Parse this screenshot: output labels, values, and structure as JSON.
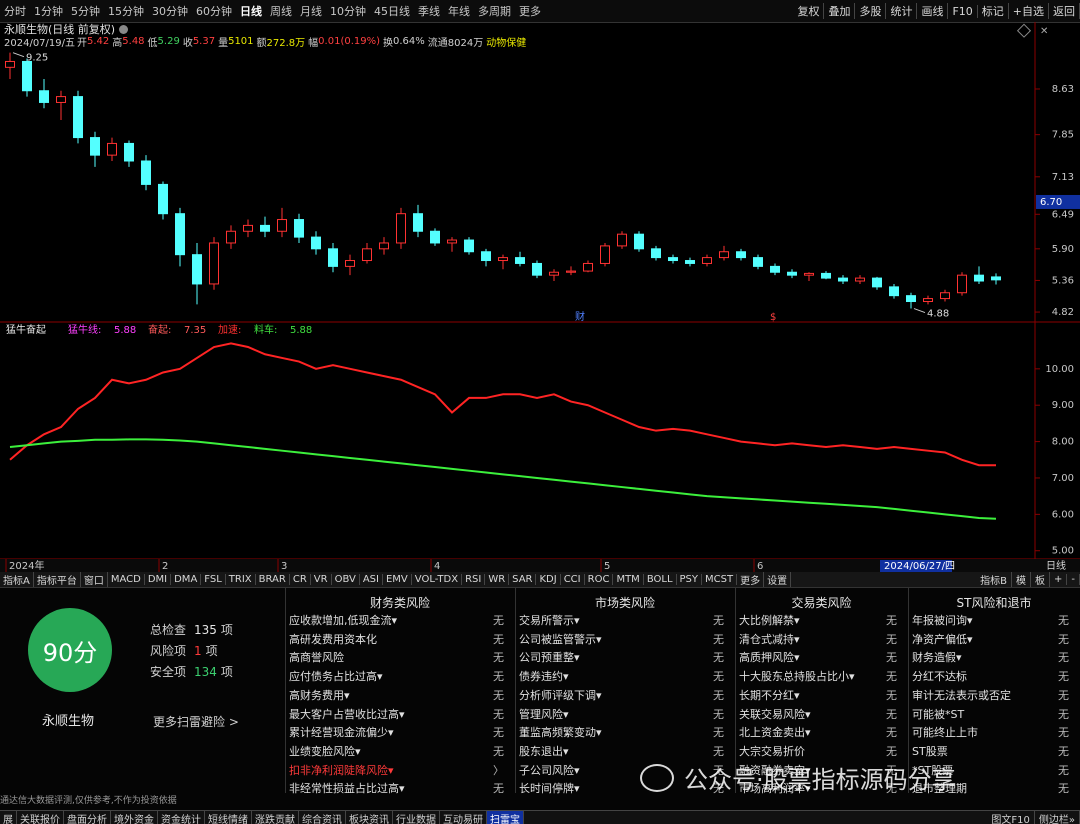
{
  "toolbar": {
    "periods": [
      {
        "label": "分时"
      },
      {
        "label": "1分钟"
      },
      {
        "label": "5分钟"
      },
      {
        "label": "15分钟"
      },
      {
        "label": "30分钟"
      },
      {
        "label": "60分钟"
      },
      {
        "label": "日线",
        "active": true
      },
      {
        "label": "周线"
      },
      {
        "label": "月线"
      },
      {
        "label": "10分钟"
      },
      {
        "label": "45日线"
      },
      {
        "label": "季线"
      },
      {
        "label": "年线"
      },
      {
        "label": "多周期"
      },
      {
        "label": "更多"
      }
    ],
    "tools": [
      "复权",
      "叠加",
      "多股",
      "统计",
      "画线",
      "F10",
      "标记",
      "+自选",
      "返回"
    ]
  },
  "stock": {
    "title": "永顺生物(日线 前复权)",
    "date": "2024/07/19/五",
    "quote": [
      {
        "label": "开",
        "value": 5.42,
        "color": "#ff4040"
      },
      {
        "label": "高",
        "value": 5.48,
        "color": "#ff4040"
      },
      {
        "label": "低",
        "value": 5.29,
        "color": "#40d060"
      },
      {
        "label": "收",
        "value": 5.37,
        "color": "#ff4040"
      },
      {
        "label": "量",
        "value": 5101,
        "color": "#e8e800"
      },
      {
        "label": "额",
        "value": "272.8万",
        "color": "#e8e800"
      },
      {
        "label": "幅",
        "value": "0.01(0.19%)",
        "color": "#ff4040"
      },
      {
        "label": "换",
        "value": "0.64%",
        "color": "#d0d0d0"
      },
      {
        "label": "流通",
        "value": "8024万",
        "color": "#d0d0d0"
      }
    ],
    "industry": "动物保健"
  },
  "chart_data": [
    {
      "type": "candlestick",
      "ylim": [
        4.65,
        9.33
      ],
      "yticks": [
        8.63,
        7.85,
        7.13,
        6.49,
        {
          "value": 5.9,
          "label": "5.90"
        },
        5.36,
        4.82
      ],
      "cursor_price": {
        "value": 6.7,
        "label": "6.70"
      },
      "up_color": "#ff3232",
      "down_color": "#54ffff",
      "event_markers": [
        "财",
        "$"
      ],
      "open": [
        9.0,
        9.1,
        8.6,
        8.4,
        8.5,
        7.8,
        7.5,
        7.7,
        7.4,
        7.0,
        6.5,
        5.8,
        5.3,
        6.0,
        6.2,
        6.3,
        6.2,
        6.4,
        6.1,
        5.9,
        5.6,
        5.7,
        5.9,
        6.0,
        6.5,
        6.2,
        6.0,
        6.05,
        5.85,
        5.7,
        5.75,
        5.65,
        5.45,
        5.5,
        5.52,
        5.65,
        5.95,
        6.15,
        5.9,
        5.75,
        5.7,
        5.65,
        5.75,
        5.85,
        5.75,
        5.6,
        5.5,
        5.45,
        5.48,
        5.4,
        5.35,
        5.4,
        5.25,
        5.1,
        5.0,
        5.05,
        5.15,
        5.45,
        5.42
      ],
      "high": [
        9.25,
        9.15,
        8.8,
        8.6,
        8.6,
        7.9,
        7.8,
        7.75,
        7.5,
        7.05,
        6.6,
        6.0,
        6.1,
        6.3,
        6.4,
        6.45,
        6.6,
        6.5,
        6.2,
        6.0,
        5.8,
        6.0,
        6.1,
        6.6,
        6.65,
        6.25,
        6.1,
        6.1,
        5.9,
        5.8,
        5.85,
        5.7,
        5.55,
        5.6,
        5.7,
        6.0,
        6.2,
        6.2,
        5.95,
        5.8,
        5.75,
        5.8,
        5.95,
        5.9,
        5.8,
        5.65,
        5.55,
        5.5,
        5.52,
        5.45,
        5.45,
        5.42,
        5.3,
        5.15,
        5.1,
        5.2,
        5.5,
        5.6,
        5.48
      ],
      "low": [
        8.8,
        8.5,
        8.3,
        8.1,
        7.7,
        7.3,
        7.4,
        7.3,
        6.9,
        6.4,
        5.6,
        4.95,
        5.2,
        5.9,
        6.1,
        6.1,
        6.1,
        6.0,
        5.8,
        5.5,
        5.45,
        5.65,
        5.8,
        5.9,
        6.1,
        5.95,
        5.85,
        5.8,
        5.6,
        5.55,
        5.6,
        5.4,
        5.35,
        5.45,
        5.5,
        5.6,
        5.9,
        5.85,
        5.7,
        5.65,
        5.6,
        5.6,
        5.7,
        5.7,
        5.55,
        5.45,
        5.4,
        5.35,
        5.38,
        5.3,
        5.3,
        5.2,
        5.05,
        4.88,
        4.95,
        5.0,
        5.1,
        5.3,
        5.29
      ],
      "close": [
        9.1,
        8.6,
        8.4,
        8.5,
        7.8,
        7.5,
        7.7,
        7.4,
        7.0,
        6.5,
        5.8,
        5.3,
        6.0,
        6.2,
        6.3,
        6.2,
        6.4,
        6.1,
        5.9,
        5.6,
        5.7,
        5.9,
        6.0,
        6.5,
        6.2,
        6.0,
        6.05,
        5.85,
        5.7,
        5.75,
        5.65,
        5.45,
        5.5,
        5.52,
        5.65,
        5.95,
        6.15,
        5.9,
        5.75,
        5.7,
        5.65,
        5.75,
        5.85,
        5.75,
        5.6,
        5.5,
        5.45,
        5.48,
        5.4,
        5.35,
        5.4,
        5.25,
        5.1,
        5.0,
        5.05,
        5.15,
        5.45,
        5.35,
        5.37
      ]
    },
    {
      "type": "line",
      "title": "猛牛奋起",
      "legend": [
        {
          "label": "猛牛线:",
          "value": 5.88,
          "color": "#ff40ff"
        },
        {
          "label": "奋起:",
          "value": 7.35,
          "color": "#ff5a5a"
        },
        {
          "label": "加速:",
          "color": "#ff3030"
        },
        {
          "label": "料车:",
          "value": 5.88,
          "color": "#40e040"
        }
      ],
      "categories": [
        "2024年",
        null,
        null,
        null,
        null,
        null,
        null,
        null,
        null,
        "2",
        null,
        null,
        null,
        null,
        null,
        null,
        "3",
        null,
        null,
        null,
        null,
        null,
        null,
        null,
        null,
        "4",
        null,
        null,
        null,
        null,
        null,
        null,
        null,
        null,
        null,
        "5",
        null,
        null,
        null,
        null,
        null,
        null,
        null,
        null,
        "6",
        null,
        null,
        null,
        null,
        null,
        null,
        null,
        null,
        null,
        null,
        null,
        null,
        null,
        null
      ],
      "cursor_date": "2024/06/27/四",
      "x_axis_label": "日线",
      "ylim": [
        4.8,
        10.93
      ],
      "yticks": [
        {
          "value": 10,
          "label": "10.00"
        },
        {
          "value": 9,
          "label": "9.00"
        },
        {
          "value": 8,
          "label": "8.00"
        },
        {
          "value": 7,
          "label": "7.00"
        },
        {
          "value": 6,
          "label": "6.00"
        },
        {
          "value": 5,
          "label": "5.00"
        }
      ],
      "series": [
        {
          "name": "奋起",
          "color": "#ff2424",
          "values": [
            7.5,
            7.9,
            8.2,
            8.4,
            8.9,
            9.2,
            9.7,
            9.6,
            9.7,
            9.9,
            10.0,
            10.3,
            10.6,
            10.7,
            10.6,
            10.4,
            10.3,
            10.2,
            10.0,
            10.1,
            10.0,
            9.9,
            9.8,
            9.7,
            9.5,
            9.3,
            8.8,
            9.2,
            9.2,
            9.3,
            9.3,
            9.2,
            9.3,
            9.1,
            9.0,
            8.8,
            8.6,
            8.4,
            8.3,
            8.35,
            8.3,
            8.2,
            8.1,
            8.0,
            7.95,
            7.9,
            7.95,
            7.9,
            7.85,
            7.9,
            7.85,
            7.8,
            7.85,
            7.8,
            7.75,
            7.7,
            7.5,
            7.35,
            7.35
          ]
        },
        {
          "name": "猛牛线",
          "color": "#3cf03c",
          "values": [
            7.85,
            7.9,
            7.95,
            8.0,
            8.02,
            8.05,
            8.05,
            8.06,
            8.06,
            8.05,
            8.03,
            8.0,
            7.95,
            7.9,
            7.85,
            7.8,
            7.75,
            7.7,
            7.65,
            7.6,
            7.55,
            7.5,
            7.45,
            7.4,
            7.35,
            7.3,
            7.25,
            7.2,
            7.15,
            7.1,
            7.05,
            7.0,
            6.95,
            6.9,
            6.85,
            6.8,
            6.75,
            6.7,
            6.65,
            6.6,
            6.55,
            6.5,
            6.47,
            6.44,
            6.41,
            6.38,
            6.35,
            6.32,
            6.29,
            6.26,
            6.23,
            6.2,
            6.15,
            6.1,
            6.05,
            6.0,
            5.95,
            5.9,
            5.88
          ]
        }
      ]
    }
  ],
  "indicator_tabs": {
    "left": [
      "指标A",
      "指标平台",
      "窗口",
      "MACD",
      "DMI",
      "DMA",
      "FSL",
      "TRIX",
      "BRAR",
      "CR",
      "VR",
      "OBV",
      "ASI",
      "EMV",
      "VOL-TDX",
      "RSI",
      "WR",
      "SAR",
      "KDJ",
      "CCI",
      "ROC",
      "MTM",
      "BOLL",
      "PSY",
      "MCST",
      "更多",
      "设置"
    ],
    "right": [
      "指标B",
      "模",
      "板",
      "+",
      "-"
    ]
  },
  "risk_panel": {
    "score": "90分",
    "stock_name": "永顺生物",
    "stats": [
      {
        "label": "总检查",
        "value": 135,
        "unit": "项",
        "color": "#e6e6e6"
      },
      {
        "label": "风险项",
        "value": 1,
        "unit": "项",
        "color": "#ff3a3a"
      },
      {
        "label": "安全项",
        "value": 134,
        "unit": "项",
        "color": "#3cd070"
      }
    ],
    "more": "更多扫雷避险 >",
    "columns": [
      {
        "title": "财务类风险",
        "rows": [
          {
            "item": "应收款增加,低现金流▾",
            "status": "无"
          },
          {
            "item": "高研发费用资本化",
            "status": "无"
          },
          {
            "item": "高商誉风险",
            "status": "无"
          },
          {
            "item": "应付债务占比过高▾",
            "status": "无"
          },
          {
            "item": "高财务费用▾",
            "status": "无"
          },
          {
            "item": "最大客户占营收比过高▾",
            "status": "无"
          },
          {
            "item": "累计经营现金流偏少▾",
            "status": "无"
          },
          {
            "item": "业绩变脸风险▾",
            "status": "无"
          },
          {
            "item": "扣非净利润陡降风险▾",
            "status": "〉",
            "risk": true
          },
          {
            "item": "非经常性损益占比过高▾",
            "status": "无"
          }
        ]
      },
      {
        "title": "市场类风险",
        "rows": [
          {
            "item": "交易所警示▾",
            "status": "无"
          },
          {
            "item": "公司被监管警示▾",
            "status": "无"
          },
          {
            "item": "公司预重整▾",
            "status": "无"
          },
          {
            "item": "债券违约▾",
            "status": "无"
          },
          {
            "item": "分析师评级下调▾",
            "status": "无"
          },
          {
            "item": "管理风险▾",
            "status": "无"
          },
          {
            "item": "董监高频繁变动▾",
            "status": "无"
          },
          {
            "item": "股东退出▾",
            "status": "无"
          },
          {
            "item": "子公司风险▾",
            "status": "无"
          },
          {
            "item": "长时间停牌▾",
            "status": "无"
          }
        ]
      },
      {
        "title": "交易类风险",
        "rows": [
          {
            "item": "大比例解禁▾",
            "status": "无"
          },
          {
            "item": "清仓式减持▾",
            "status": "无"
          },
          {
            "item": "高质押风险▾",
            "status": "无"
          },
          {
            "item": "十大股东总持股占比小▾",
            "status": "无"
          },
          {
            "item": "长期不分红▾",
            "status": "无"
          },
          {
            "item": "关联交易风险▾",
            "status": "无"
          },
          {
            "item": "北上资金卖出▾",
            "status": "无"
          },
          {
            "item": "大宗交易折价",
            "status": "无"
          },
          {
            "item": "融资融券卖空▾",
            "status": "无"
          },
          {
            "item": "市场高利润率▾",
            "status": "无"
          }
        ]
      },
      {
        "title": "ST风险和退市",
        "rows": [
          {
            "item": "年报被问询▾",
            "status": "无"
          },
          {
            "item": "净资产偏低▾",
            "status": "无"
          },
          {
            "item": "财务造假▾",
            "status": "无"
          },
          {
            "item": "分红不达标",
            "status": "无"
          },
          {
            "item": "审计无法表示或否定",
            "status": "无"
          },
          {
            "item": "可能被*ST",
            "status": "无"
          },
          {
            "item": "可能终止上市",
            "status": "无"
          },
          {
            "item": "ST股票",
            "status": "无"
          },
          {
            "item": "*ST股票",
            "status": "无"
          },
          {
            "item": "退市整理期",
            "status": "无"
          }
        ]
      }
    ],
    "disclaimer": "通达信大数据评测,仅供参考,不作为投资依据"
  },
  "watermark": "公众号·股票指标源码分享",
  "bottom_tabs": {
    "left": [
      {
        "label": "展"
      },
      {
        "label": "关联报价"
      },
      {
        "label": "盘面分析"
      },
      {
        "label": "境外资金"
      },
      {
        "label": "资金统计"
      },
      {
        "label": "短线情绪"
      },
      {
        "label": "涨跌贡献"
      },
      {
        "label": "综合资讯"
      },
      {
        "label": "板块资讯"
      },
      {
        "label": "行业数据"
      },
      {
        "label": "互动易研"
      },
      {
        "label": "扫雷宝",
        "active": true
      }
    ],
    "right": [
      "图文F10",
      "侧边栏»"
    ]
  }
}
